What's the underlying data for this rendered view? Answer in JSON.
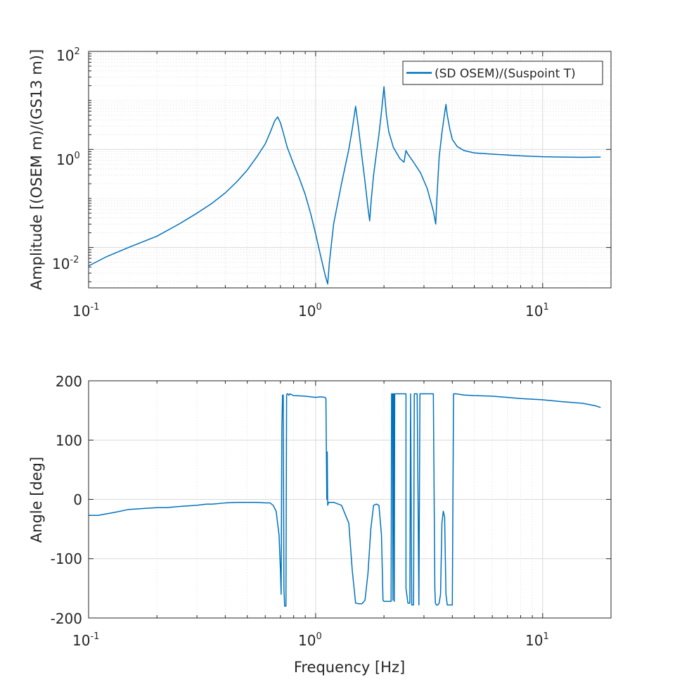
{
  "chart_data": [
    {
      "type": "line",
      "xscale": "log",
      "yscale": "log",
      "xlim": [
        0.1,
        20
      ],
      "ylim": [
        0.0015,
        100
      ],
      "xticks": [
        {
          "base": "10",
          "exp": "-1"
        },
        {
          "base": "10",
          "exp": "0"
        },
        {
          "base": "10",
          "exp": "1"
        }
      ],
      "yticks": [
        {
          "value": 0.01,
          "base": "10",
          "exp": "-2"
        },
        {
          "value": 1,
          "base": "10",
          "exp": "0"
        },
        {
          "value": 100,
          "base": "10",
          "exp": "2"
        }
      ],
      "xlabel": "",
      "ylabel": "Amplitude [(OSEM m)/(GS13 m)]",
      "grid": true,
      "minor_grid": true,
      "legend_position": "top-right",
      "series": [
        {
          "name": "(SD OSEM)/(Suspoint T)",
          "color": "#0072BD",
          "x": [
            0.1,
            0.12,
            0.15,
            0.2,
            0.25,
            0.3,
            0.35,
            0.4,
            0.45,
            0.5,
            0.55,
            0.6,
            0.63,
            0.66,
            0.68,
            0.7,
            0.72,
            0.75,
            0.8,
            0.85,
            0.9,
            0.95,
            1.0,
            1.05,
            1.1,
            1.13,
            1.15,
            1.2,
            1.3,
            1.4,
            1.45,
            1.5,
            1.55,
            1.6,
            1.65,
            1.7,
            1.73,
            1.76,
            1.8,
            1.85,
            1.9,
            1.95,
            2.0,
            2.05,
            2.1,
            2.2,
            2.35,
            2.45,
            2.5,
            2.55,
            2.7,
            2.9,
            3.1,
            3.3,
            3.38,
            3.42,
            3.5,
            3.6,
            3.7,
            3.75,
            3.8,
            3.9,
            4.0,
            4.2,
            4.5,
            5.0,
            6.0,
            7.0,
            8.0,
            10.0,
            12.0,
            15.0,
            18.0
          ],
          "y": [
            0.0042,
            0.0065,
            0.01,
            0.017,
            0.03,
            0.05,
            0.08,
            0.13,
            0.22,
            0.38,
            0.7,
            1.3,
            2.2,
            3.8,
            4.6,
            3.5,
            2.2,
            1.1,
            0.5,
            0.25,
            0.12,
            0.05,
            0.019,
            0.007,
            0.0028,
            0.0018,
            0.005,
            0.03,
            0.2,
            1.0,
            2.6,
            7.6,
            2.4,
            0.7,
            0.22,
            0.065,
            0.035,
            0.1,
            0.3,
            0.8,
            2.0,
            5.8,
            19.0,
            5.0,
            2.3,
            1.1,
            0.65,
            0.55,
            0.95,
            0.8,
            0.55,
            0.33,
            0.16,
            0.055,
            0.03,
            0.1,
            0.7,
            2.2,
            5.5,
            8.3,
            5.0,
            2.6,
            1.6,
            1.15,
            0.95,
            0.85,
            0.8,
            0.77,
            0.74,
            0.71,
            0.7,
            0.69,
            0.7
          ]
        }
      ]
    },
    {
      "type": "line",
      "xscale": "log",
      "xlim": [
        0.1,
        20
      ],
      "ylim": [
        -200,
        200
      ],
      "xticks": [
        {
          "base": "10",
          "exp": "-1"
        },
        {
          "base": "10",
          "exp": "0"
        },
        {
          "base": "10",
          "exp": "1"
        }
      ],
      "yticks": [
        {
          "value": -200,
          "label": "-200"
        },
        {
          "value": -100,
          "label": "-100"
        },
        {
          "value": 0,
          "label": "0"
        },
        {
          "value": 100,
          "label": "100"
        },
        {
          "value": 200,
          "label": "200"
        }
      ],
      "xlabel": "Frequency [Hz]",
      "ylabel": "Angle [deg]",
      "grid": true,
      "minor_grid": true,
      "series": [
        {
          "color": "#0072BD",
          "x": [
            0.1,
            0.11,
            0.13,
            0.15,
            0.18,
            0.2,
            0.22,
            0.25,
            0.3,
            0.33,
            0.35,
            0.4,
            0.45,
            0.5,
            0.55,
            0.6,
            0.63,
            0.65,
            0.67,
            0.69,
            0.7,
            0.705,
            0.71,
            0.715,
            0.72,
            0.725,
            0.73,
            0.74,
            0.745,
            0.75,
            0.755,
            0.76,
            0.765,
            0.77,
            0.8,
            0.9,
            1.0,
            1.05,
            1.1,
            1.11,
            1.12,
            1.125,
            1.13,
            1.14,
            1.15,
            1.2,
            1.3,
            1.4,
            1.45,
            1.5,
            1.55,
            1.6,
            1.65,
            1.7,
            1.75,
            1.8,
            1.85,
            1.9,
            1.95,
            1.98,
            2.0,
            2.05,
            2.15,
            2.16,
            2.18,
            2.19,
            2.2,
            2.21,
            2.22,
            2.23,
            2.3,
            2.4,
            2.5,
            2.5,
            2.55,
            2.6,
            2.62,
            2.65,
            2.7,
            2.72,
            2.75,
            2.8,
            2.85,
            2.88,
            2.9,
            2.95,
            3.0,
            3.05,
            3.1,
            3.3,
            3.35,
            3.37,
            3.4,
            3.45,
            3.5,
            3.55,
            3.6,
            3.65,
            3.7,
            3.75,
            3.8,
            3.85,
            3.9,
            4.0,
            4.05,
            4.1,
            4.12,
            4.15,
            4.5,
            5.0,
            6.0,
            7.0,
            8.0,
            10.0,
            12.0,
            15.0,
            17.0,
            18.0
          ],
          "y": [
            -27,
            -27,
            -22,
            -17,
            -15,
            -14,
            -14,
            -12,
            -10,
            -8,
            -8,
            -6,
            -5,
            -5,
            -5,
            -6,
            -6,
            -10,
            -20,
            -60,
            -120,
            -160,
            120,
            176,
            176,
            -150,
            -180,
            -180,
            176,
            178,
            178,
            176,
            176,
            178,
            175,
            174,
            172,
            173,
            172,
            170,
            0,
            80,
            -10,
            -5,
            -5,
            -5,
            -10,
            -40,
            -120,
            -175,
            -176,
            -176,
            -170,
            -125,
            -50,
            -10,
            -8,
            -10,
            -60,
            -170,
            -172,
            -172,
            -172,
            178,
            178,
            -170,
            178,
            178,
            -172,
            178,
            178,
            178,
            178,
            -150,
            -175,
            -175,
            178,
            -178,
            -178,
            178,
            178,
            178,
            -178,
            178,
            178,
            178,
            178,
            178,
            178,
            178,
            -150,
            -175,
            -178,
            -178,
            -175,
            -160,
            -40,
            -20,
            -30,
            -160,
            -178,
            -178,
            -178,
            -178,
            178,
            178,
            178,
            178,
            176,
            175,
            174,
            172,
            170,
            168,
            165,
            162,
            158,
            155
          ]
        }
      ]
    }
  ]
}
